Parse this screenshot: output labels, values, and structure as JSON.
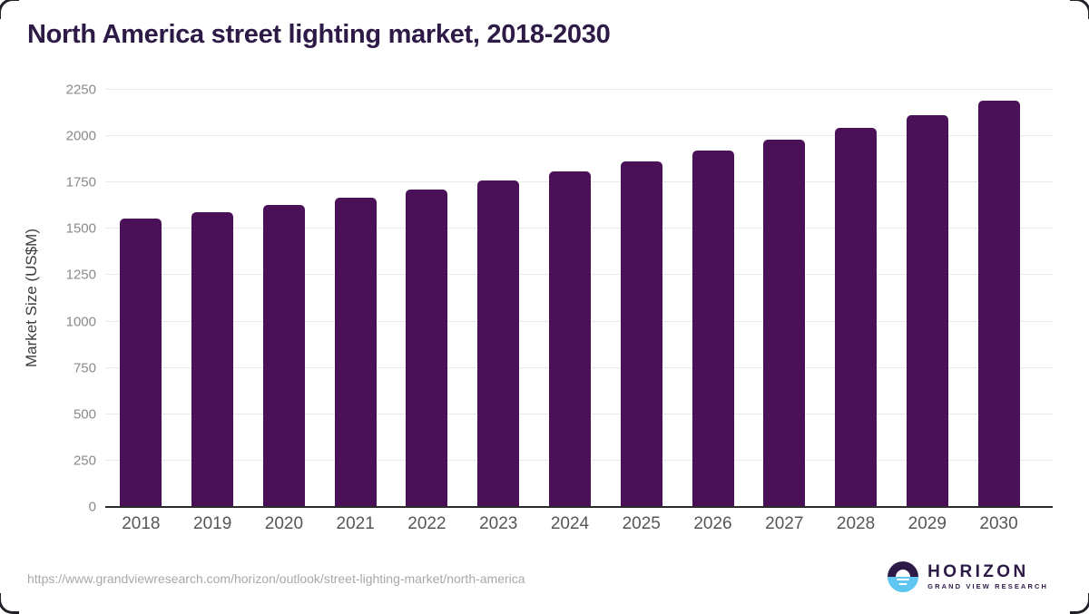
{
  "page": {
    "title": "North America street lighting market, 2018-2030",
    "source_url": "https://www.grandviewresearch.com/horizon/outlook/street-lighting-market/north-america"
  },
  "logo": {
    "name": "HORIZON",
    "subtitle": "GRAND VIEW RESEARCH",
    "icon": "sunrise-over-water-icon"
  },
  "colors": {
    "bar": "#4a1158",
    "title_text": "#2e1a47",
    "gridline": "#e8e8e8",
    "axis_line": "#2b2b2b",
    "y_tick_text": "#8a8a8a",
    "x_tick_text": "#565656",
    "source_url_text": "#a8a8a8",
    "logo_blue": "#5ec6f0",
    "logo_purple": "#2e1a47"
  },
  "chart_data": {
    "type": "bar",
    "title": "North America street lighting market, 2018-2030",
    "categories": [
      "2018",
      "2019",
      "2020",
      "2021",
      "2022",
      "2023",
      "2024",
      "2025",
      "2026",
      "2027",
      "2028",
      "2029",
      "2030"
    ],
    "values": [
      1555,
      1590,
      1627,
      1667,
      1711,
      1759,
      1812,
      1865,
      1922,
      1982,
      2044,
      2111,
      2191
    ],
    "xlabel": "",
    "ylabel": "Market Size (US$M)",
    "ylim": [
      0,
      2250
    ],
    "yticks": [
      0,
      250,
      500,
      750,
      1000,
      1250,
      1500,
      1750,
      2000,
      2250
    ],
    "grid": "horizontal",
    "legend": "none",
    "bar_color": "#4a1158"
  }
}
